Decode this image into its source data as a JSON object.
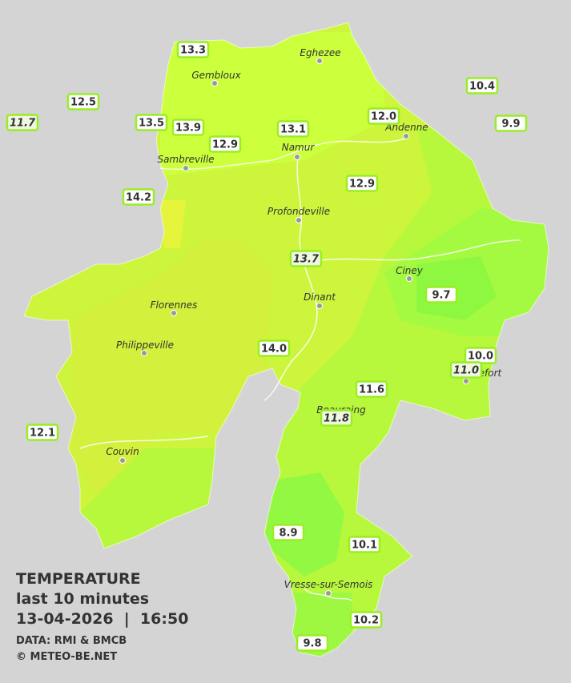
{
  "legend": {
    "title": "TEMPERATURE",
    "subtitle": "last 10 minutes",
    "datetime": "13-04-2026  |  16:50",
    "source": "DATA: RMI & BMCB",
    "credit": "© METEO-BE.NET"
  },
  "cities": [
    {
      "name": "Eghezee"
    },
    {
      "name": "Gembloux"
    },
    {
      "name": "Andenne"
    },
    {
      "name": "Namur"
    },
    {
      "name": "Sambreville"
    },
    {
      "name": "Profondeville"
    },
    {
      "name": "Ciney"
    },
    {
      "name": "Dinant"
    },
    {
      "name": "Florennes"
    },
    {
      "name": "Philippeville"
    },
    {
      "name": "Rochefort"
    },
    {
      "name": "Beauraing"
    },
    {
      "name": "Couvin"
    },
    {
      "name": "Vresse-sur-Semois"
    }
  ],
  "stations": [
    {
      "label": "13.3",
      "italic": false
    },
    {
      "label": "12.5",
      "italic": false
    },
    {
      "label": "11.7",
      "italic": true
    },
    {
      "label": "13.5",
      "italic": false
    },
    {
      "label": "13.9",
      "italic": false
    },
    {
      "label": "12.9",
      "italic": false
    },
    {
      "label": "13.1",
      "italic": false
    },
    {
      "label": "12.0",
      "italic": false
    },
    {
      "label": "10.4",
      "italic": false
    },
    {
      "label": "9.9",
      "italic": false
    },
    {
      "label": "14.2",
      "italic": false
    },
    {
      "label": "12.9",
      "italic": false
    },
    {
      "label": "13.7",
      "italic": true
    },
    {
      "label": "9.7",
      "italic": false
    },
    {
      "label": "14.0",
      "italic": false
    },
    {
      "label": "10.0",
      "italic": false
    },
    {
      "label": "11.0",
      "italic": true
    },
    {
      "label": "11.6",
      "italic": false
    },
    {
      "label": "11.8",
      "italic": true
    },
    {
      "label": "12.1",
      "italic": false
    },
    {
      "label": "8.9",
      "italic": false
    },
    {
      "label": "10.1",
      "italic": false
    },
    {
      "label": "10.2",
      "italic": false
    },
    {
      "label": "9.8",
      "italic": false
    }
  ]
}
